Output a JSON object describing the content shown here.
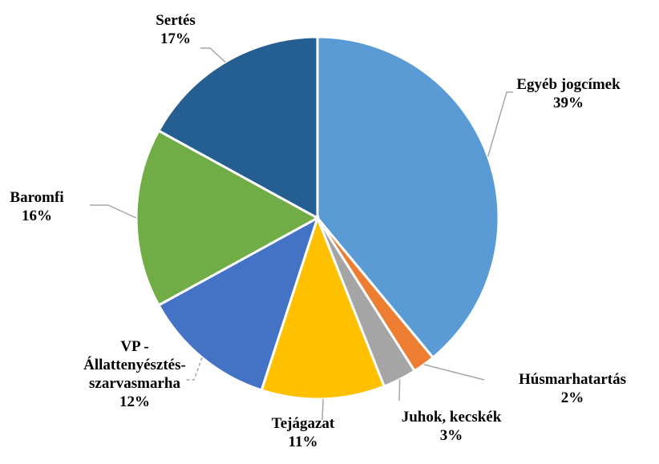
{
  "chart_data": {
    "type": "pie",
    "categories": [
      "Egyéb jogcímek",
      "Húsmarhatartás",
      "Juhok, kecskék",
      "Tejágazat",
      "VP - Állattenyésztés-szarvasmarha",
      "Baromfi",
      "Sertés"
    ],
    "values": [
      39,
      2,
      3,
      11,
      12,
      16,
      17
    ],
    "value_labels": [
      "39%",
      "2%",
      "3%",
      "11%",
      "12%",
      "16%",
      "17%"
    ],
    "colors": [
      "#5b9bd5",
      "#ed7d31",
      "#a5a5a5",
      "#ffc000",
      "#4472c4",
      "#70ad47",
      "#255e91"
    ]
  }
}
